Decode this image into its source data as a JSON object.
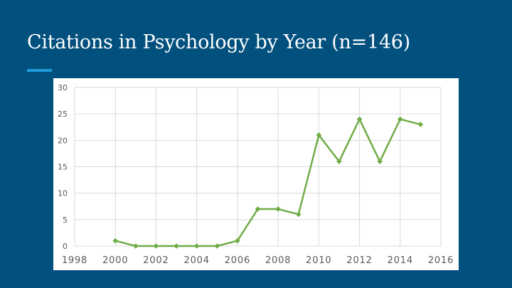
{
  "slide": {
    "title": "Citations in Psychology by Year (n=146)",
    "accent_color": "#1e9bd7",
    "background_color": "#01507e"
  },
  "chart_data": {
    "type": "line",
    "title": "",
    "xlabel": "",
    "ylabel": "",
    "xlim": [
      1998,
      2016
    ],
    "ylim": [
      0,
      30
    ],
    "x_ticks": [
      1998,
      2000,
      2002,
      2004,
      2006,
      2008,
      2010,
      2012,
      2014,
      2016
    ],
    "y_ticks": [
      0,
      5,
      10,
      15,
      20,
      25,
      30
    ],
    "grid": true,
    "legend": "none",
    "series": [
      {
        "color": "#70ad47",
        "marker": "diamond",
        "x": [
          2000,
          2001,
          2002,
          2003,
          2004,
          2005,
          2006,
          2007,
          2008,
          2009,
          2010,
          2011,
          2012,
          2013,
          2014,
          2015
        ],
        "y": [
          1,
          0,
          0,
          0,
          0,
          0,
          1,
          7,
          7,
          6,
          21,
          16,
          24,
          16,
          24,
          23
        ]
      }
    ]
  }
}
